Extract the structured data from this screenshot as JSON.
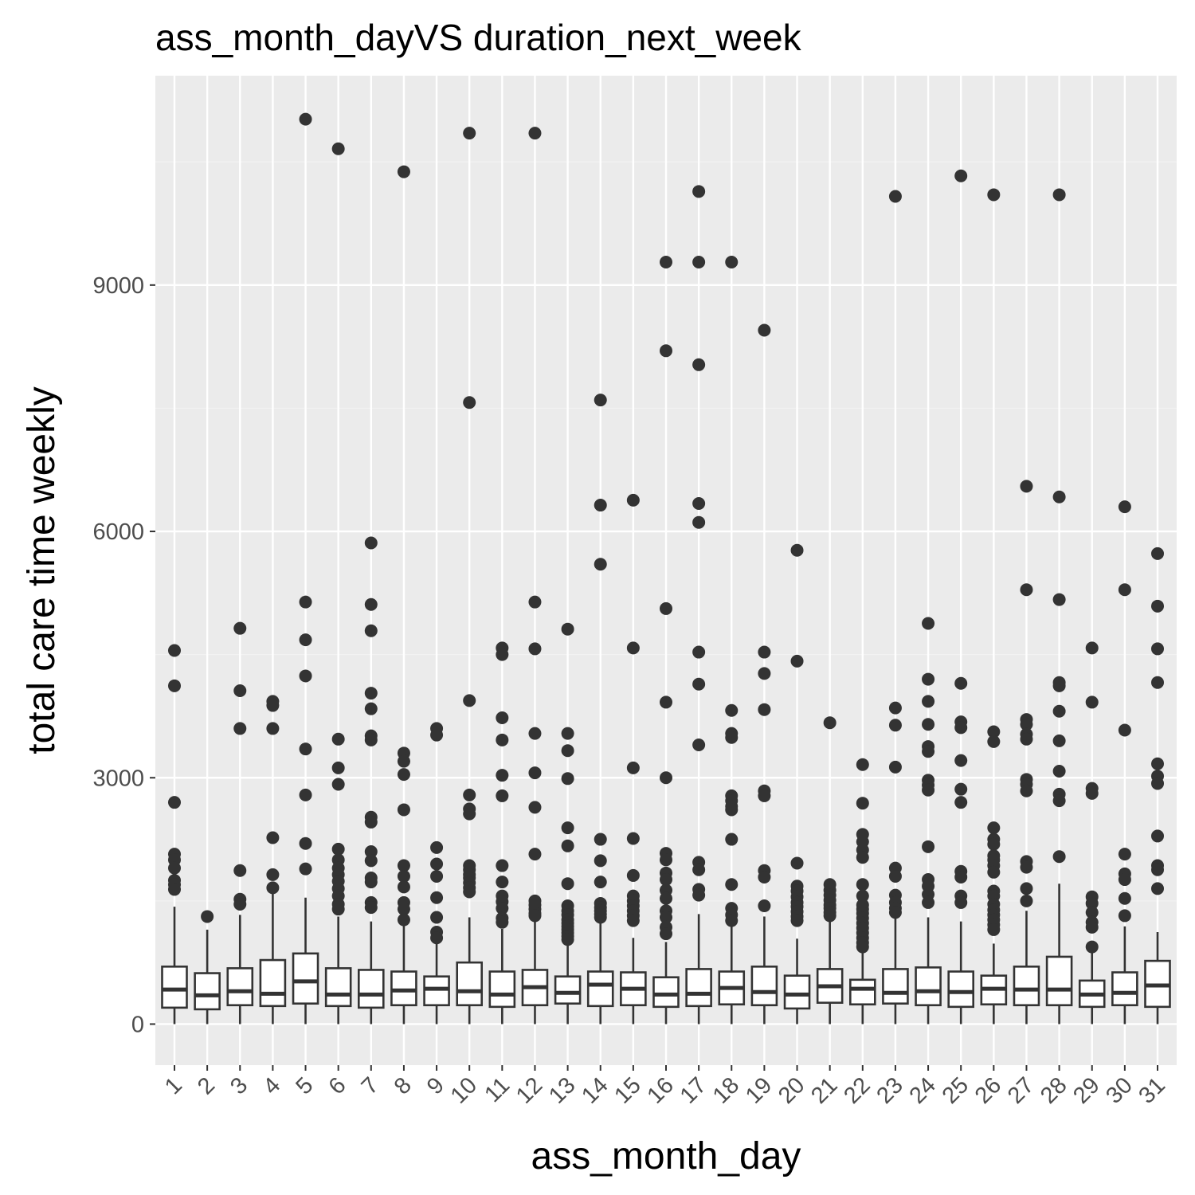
{
  "chart_data": {
    "type": "boxplot",
    "title": "ass_month_dayVS duration_next_week",
    "xlabel": "ass_month_day",
    "ylabel": "total care time weekly",
    "ylim": [
      -500,
      11550
    ],
    "yticks": [
      0,
      3000,
      6000,
      9000
    ],
    "categories": [
      "1",
      "2",
      "3",
      "4",
      "5",
      "6",
      "7",
      "8",
      "9",
      "10",
      "11",
      "12",
      "13",
      "14",
      "15",
      "16",
      "17",
      "18",
      "19",
      "20",
      "21",
      "22",
      "23",
      "24",
      "25",
      "26",
      "27",
      "28",
      "29",
      "30",
      "31"
    ],
    "boxes": [
      {
        "q1": 200,
        "median": 420,
        "q3": 700,
        "whisker_low": 0,
        "whisker_high": 1430,
        "outliers": [
          4550,
          4120,
          2700,
          2070,
          2000,
          1900,
          1750,
          1700,
          1640
        ]
      },
      {
        "q1": 180,
        "median": 350,
        "q3": 620,
        "whisker_low": 0,
        "whisker_high": 1150,
        "outliers": [
          1310
        ]
      },
      {
        "q1": 230,
        "median": 400,
        "q3": 680,
        "whisker_low": 0,
        "whisker_high": 1330,
        "outliers": [
          4820,
          4060,
          3600,
          1870,
          1520,
          1460
        ]
      },
      {
        "q1": 220,
        "median": 370,
        "q3": 780,
        "whisker_low": 0,
        "whisker_high": 1600,
        "outliers": [
          3930,
          3880,
          3600,
          2270,
          1820,
          1660
        ]
      },
      {
        "q1": 250,
        "median": 520,
        "q3": 860,
        "whisker_low": 0,
        "whisker_high": 1540,
        "outliers": [
          11020,
          5140,
          4680,
          4240,
          3350,
          2790,
          2200,
          1890
        ]
      },
      {
        "q1": 220,
        "median": 360,
        "q3": 680,
        "whisker_low": 0,
        "whisker_high": 1310,
        "outliers": [
          10660,
          3470,
          3120,
          2920,
          2130,
          2000,
          1900,
          1820,
          1740,
          1650,
          1560,
          1460,
          1400
        ]
      },
      {
        "q1": 200,
        "median": 360,
        "q3": 660,
        "whisker_low": 0,
        "whisker_high": 1250,
        "outliers": [
          5860,
          5110,
          4790,
          4030,
          3840,
          3510,
          3460,
          2520,
          2460,
          2100,
          1990,
          1780,
          1730,
          1480,
          1420
        ]
      },
      {
        "q1": 230,
        "median": 410,
        "q3": 640,
        "whisker_low": 0,
        "whisker_high": 1270,
        "outliers": [
          10380,
          3300,
          3200,
          3040,
          2610,
          1930,
          1800,
          1670,
          1480,
          1400,
          1270
        ]
      },
      {
        "q1": 230,
        "median": 430,
        "q3": 580,
        "whisker_low": 0,
        "whisker_high": 1100,
        "outliers": [
          3600,
          3520,
          2150,
          1950,
          1800,
          1540,
          1300,
          1120,
          1050
        ]
      },
      {
        "q1": 230,
        "median": 400,
        "q3": 750,
        "whisker_low": 0,
        "whisker_high": 1300,
        "outliers": [
          10850,
          7570,
          3940,
          2790,
          2620,
          2560,
          1930,
          1880,
          1820,
          1780,
          1720,
          1660,
          1610
        ]
      },
      {
        "q1": 210,
        "median": 360,
        "q3": 640,
        "whisker_low": 0,
        "whisker_high": 1160,
        "outliers": [
          4580,
          4500,
          3730,
          3460,
          3030,
          2780,
          1930,
          1730,
          1560,
          1490,
          1410,
          1290,
          1240
        ]
      },
      {
        "q1": 230,
        "median": 450,
        "q3": 660,
        "whisker_low": 0,
        "whisker_high": 1270,
        "outliers": [
          10850,
          5140,
          4570,
          3540,
          3060,
          2640,
          2070,
          1500,
          1450,
          1400,
          1350,
          1320
        ]
      },
      {
        "q1": 250,
        "median": 380,
        "q3": 580,
        "whisker_low": 0,
        "whisker_high": 1000,
        "outliers": [
          4810,
          3540,
          3330,
          2990,
          2390,
          2170,
          1710,
          1440,
          1380,
          1330,
          1270,
          1230,
          1190,
          1150,
          1110,
          1070,
          1030
        ]
      },
      {
        "q1": 220,
        "median": 480,
        "q3": 640,
        "whisker_low": 0,
        "whisker_high": 1280,
        "outliers": [
          7600,
          6320,
          5600,
          2250,
          1990,
          1730,
          1470,
          1420,
          1380,
          1340,
          1300
        ]
      },
      {
        "q1": 230,
        "median": 430,
        "q3": 630,
        "whisker_low": 0,
        "whisker_high": 1050,
        "outliers": [
          6380,
          4580,
          3120,
          2260,
          1810,
          1560,
          1500,
          1440,
          1380,
          1320,
          1260
        ]
      },
      {
        "q1": 210,
        "median": 360,
        "q3": 570,
        "whisker_low": 0,
        "whisker_high": 1000,
        "outliers": [
          9280,
          8200,
          5060,
          3920,
          3000,
          2080,
          2000,
          1840,
          1760,
          1630,
          1530,
          1380,
          1300,
          1180,
          1100
        ]
      },
      {
        "q1": 220,
        "median": 370,
        "q3": 670,
        "whisker_low": 0,
        "whisker_high": 1340,
        "outliers": [
          10140,
          9280,
          8030,
          6340,
          6110,
          4530,
          4140,
          3400,
          1970,
          1880,
          1640,
          1570
        ]
      },
      {
        "q1": 240,
        "median": 440,
        "q3": 640,
        "whisker_low": 0,
        "whisker_high": 1200,
        "outliers": [
          9280,
          3820,
          3540,
          3490,
          2780,
          2720,
          2650,
          2610,
          2250,
          1700,
          1410,
          1330,
          1260
        ]
      },
      {
        "q1": 230,
        "median": 390,
        "q3": 700,
        "whisker_low": 0,
        "whisker_high": 1310,
        "outliers": [
          8450,
          4530,
          4270,
          3830,
          2840,
          2780,
          1870,
          1790,
          1440
        ]
      },
      {
        "q1": 190,
        "median": 360,
        "q3": 590,
        "whisker_low": 0,
        "whisker_high": 1040,
        "outliers": [
          5770,
          4420,
          1960,
          1680,
          1620,
          1550,
          1480,
          1430,
          1370,
          1310,
          1260
        ]
      },
      {
        "q1": 260,
        "median": 460,
        "q3": 670,
        "whisker_low": 0,
        "whisker_high": 1310,
        "outliers": [
          3670,
          1700,
          1630,
          1570,
          1510,
          1450,
          1410,
          1360,
          1320
        ]
      },
      {
        "q1": 240,
        "median": 430,
        "q3": 540,
        "whisker_low": 0,
        "whisker_high": 880,
        "outliers": [
          3160,
          2690,
          2310,
          2220,
          2120,
          2030,
          1700,
          1560,
          1450,
          1400,
          1350,
          1290,
          1230,
          1170,
          1110,
          1050,
          990,
          940
        ]
      },
      {
        "q1": 250,
        "median": 380,
        "q3": 670,
        "whisker_low": 0,
        "whisker_high": 1330,
        "outliers": [
          10080,
          3850,
          3640,
          3130,
          1900,
          1800,
          1570,
          1480,
          1410,
          1360
        ]
      },
      {
        "q1": 230,
        "median": 400,
        "q3": 690,
        "whisker_low": 0,
        "whisker_high": 1300,
        "outliers": [
          4880,
          4200,
          3930,
          3650,
          3380,
          3320,
          2970,
          2910,
          2850,
          2160,
          1760,
          1680,
          1580,
          1480
        ]
      },
      {
        "q1": 210,
        "median": 390,
        "q3": 640,
        "whisker_low": 0,
        "whisker_high": 1250,
        "outliers": [
          10330,
          4150,
          3680,
          3610,
          3210,
          2860,
          2700,
          1860,
          1790,
          1560,
          1480
        ]
      },
      {
        "q1": 240,
        "median": 430,
        "q3": 590,
        "whisker_low": 0,
        "whisker_high": 980,
        "outliers": [
          10100,
          3560,
          3440,
          2390,
          2250,
          2190,
          2050,
          2000,
          1930,
          1850,
          1620,
          1560,
          1460,
          1390,
          1330,
          1270,
          1210,
          1150
        ]
      },
      {
        "q1": 230,
        "median": 420,
        "q3": 700,
        "whisker_low": 0,
        "whisker_high": 1380,
        "outliers": [
          6550,
          5290,
          3710,
          3650,
          3530,
          3470,
          2980,
          2920,
          2840,
          1980,
          1910,
          1650,
          1500
        ]
      },
      {
        "q1": 230,
        "median": 420,
        "q3": 820,
        "whisker_low": 0,
        "whisker_high": 1710,
        "outliers": [
          10100,
          6420,
          5170,
          4160,
          4120,
          3810,
          3450,
          3080,
          2800,
          2720,
          2040
        ]
      },
      {
        "q1": 210,
        "median": 360,
        "q3": 530,
        "whisker_low": 0,
        "whisker_high": 890,
        "outliers": [
          4580,
          3920,
          2870,
          2810,
          1550,
          1470,
          1360,
          1240,
          1180,
          940
        ]
      },
      {
        "q1": 230,
        "median": 380,
        "q3": 630,
        "whisker_low": 0,
        "whisker_high": 1190,
        "outliers": [
          6300,
          5290,
          3580,
          2070,
          1830,
          1760,
          1530,
          1320
        ]
      },
      {
        "q1": 210,
        "median": 470,
        "q3": 770,
        "whisker_low": 0,
        "whisker_high": 1120,
        "outliers": [
          5730,
          5090,
          4570,
          4160,
          3170,
          3020,
          2930,
          2290,
          1930,
          1880,
          1650
        ]
      }
    ],
    "colors": {
      "panel_bg": "#ebebeb",
      "grid_major": "#ffffff",
      "grid_minor": "#f2f2f2",
      "box_fill": "#ffffff",
      "box_line": "#333333",
      "outlier": "#333333",
      "tick_text": "#4d4d4d",
      "tick_mark": "#333333"
    }
  }
}
